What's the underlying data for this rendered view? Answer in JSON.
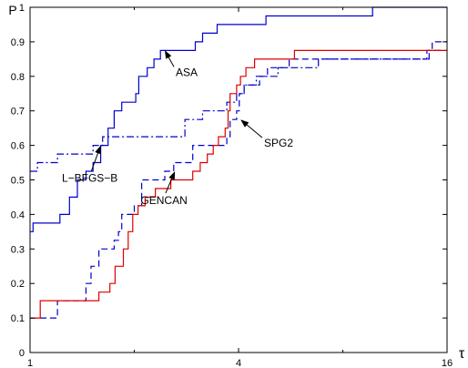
{
  "chart_data": {
    "type": "line",
    "title": "",
    "xlabel": "τ",
    "ylabel": "P",
    "x_scale": "log2",
    "xlim": [
      1,
      16
    ],
    "ylim": [
      0,
      1
    ],
    "grid": false,
    "x_major_ticks": [
      1,
      4,
      16
    ],
    "x_minor_ticks": [
      2,
      8
    ],
    "y_ticks": [
      0,
      0.1,
      0.2,
      0.3,
      0.4,
      0.5,
      0.6,
      0.7,
      0.8,
      0.9,
      1
    ],
    "y_tick_labels": [
      "0",
      "0.1",
      "0.2",
      "0.3",
      "0.4",
      "0.5",
      "0.6",
      "0.7",
      "0.8",
      "0.9",
      "1"
    ],
    "series": [
      {
        "name": "ASA",
        "color": "#0000cc",
        "dash": "solid",
        "points": [
          [
            1,
            0.35
          ],
          [
            1.02,
            0.375
          ],
          [
            1.22,
            0.4
          ],
          [
            1.3,
            0.45
          ],
          [
            1.37,
            0.5
          ],
          [
            1.45,
            0.525
          ],
          [
            1.52,
            0.55
          ],
          [
            1.6,
            0.6
          ],
          [
            1.68,
            0.65
          ],
          [
            1.75,
            0.7
          ],
          [
            1.84,
            0.725
          ],
          [
            2.02,
            0.75
          ],
          [
            2.06,
            0.8
          ],
          [
            2.18,
            0.825
          ],
          [
            2.28,
            0.85
          ],
          [
            2.38,
            0.875
          ],
          [
            3.0,
            0.9
          ],
          [
            3.15,
            0.925
          ],
          [
            3.47,
            0.95
          ],
          [
            4.8,
            0.975
          ],
          [
            9.75,
            1.0
          ],
          [
            16,
            1.0
          ]
        ]
      },
      {
        "name": "L−BFGS−B",
        "color": "#0000cc",
        "dash": "dashdot",
        "points": [
          [
            1,
            0.525
          ],
          [
            1.05,
            0.55
          ],
          [
            1.2,
            0.575
          ],
          [
            1.52,
            0.6
          ],
          [
            1.62,
            0.625
          ],
          [
            2.8,
            0.675
          ],
          [
            3.15,
            0.7
          ],
          [
            3.7,
            0.725
          ],
          [
            3.95,
            0.75
          ],
          [
            4.15,
            0.775
          ],
          [
            4.5,
            0.8
          ],
          [
            5.2,
            0.825
          ],
          [
            6.8,
            0.85
          ],
          [
            14.2,
            0.875
          ],
          [
            16,
            0.875
          ]
        ]
      },
      {
        "name": "SPG2",
        "color": "#0000cc",
        "dash": "dashed",
        "points": [
          [
            1,
            0.1
          ],
          [
            1.2,
            0.15
          ],
          [
            1.45,
            0.2
          ],
          [
            1.5,
            0.25
          ],
          [
            1.58,
            0.3
          ],
          [
            1.75,
            0.325
          ],
          [
            1.8,
            0.35
          ],
          [
            1.84,
            0.4
          ],
          [
            2.0,
            0.425
          ],
          [
            2.1,
            0.5
          ],
          [
            2.45,
            0.525
          ],
          [
            2.6,
            0.55
          ],
          [
            2.95,
            0.6
          ],
          [
            3.7,
            0.625
          ],
          [
            3.78,
            0.675
          ],
          [
            3.95,
            0.7
          ],
          [
            4.02,
            0.75
          ],
          [
            4.15,
            0.775
          ],
          [
            4.6,
            0.8
          ],
          [
            4.85,
            0.825
          ],
          [
            5.6,
            0.85
          ],
          [
            14.0,
            0.875
          ],
          [
            14.5,
            0.9
          ],
          [
            16,
            0.9
          ]
        ]
      },
      {
        "name": "GENCAN",
        "color": "#dd0000",
        "dash": "solid",
        "points": [
          [
            1,
            0.1
          ],
          [
            1.07,
            0.15
          ],
          [
            1.58,
            0.175
          ],
          [
            1.7,
            0.2
          ],
          [
            1.76,
            0.25
          ],
          [
            1.86,
            0.3
          ],
          [
            1.92,
            0.35
          ],
          [
            1.98,
            0.4
          ],
          [
            2.05,
            0.425
          ],
          [
            2.15,
            0.45
          ],
          [
            2.3,
            0.475
          ],
          [
            2.55,
            0.5
          ],
          [
            2.95,
            0.525
          ],
          [
            3.1,
            0.55
          ],
          [
            3.25,
            0.575
          ],
          [
            3.38,
            0.6
          ],
          [
            3.5,
            0.625
          ],
          [
            3.66,
            0.65
          ],
          [
            3.73,
            0.7
          ],
          [
            3.78,
            0.75
          ],
          [
            3.95,
            0.775
          ],
          [
            4.05,
            0.8
          ],
          [
            4.2,
            0.825
          ],
          [
            4.45,
            0.85
          ],
          [
            5.8,
            0.875
          ],
          [
            16,
            0.875
          ]
        ]
      }
    ],
    "annotations": [
      {
        "text": "ASA",
        "target": [
          2.45,
          0.875
        ]
      },
      {
        "text": "L−BFGS−B",
        "target": [
          1.6,
          0.6
        ]
      },
      {
        "text": "SPG2",
        "target": [
          4.05,
          0.675
        ]
      },
      {
        "text": "GENCAN",
        "target": [
          2.62,
          0.525
        ]
      }
    ]
  }
}
